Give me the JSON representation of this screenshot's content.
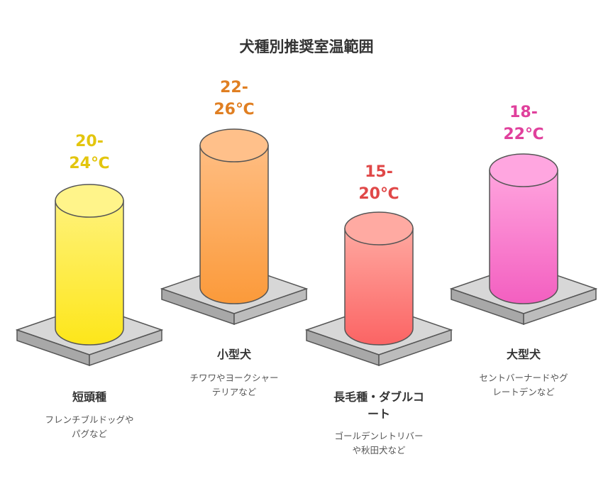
{
  "title": "犬種別推奨室温範囲",
  "breeds": [
    {
      "temp": [
        "20-",
        "24℃"
      ],
      "name": [
        "短頭種"
      ],
      "desc": [
        "フレンチブルドッグや",
        "パグなど"
      ],
      "color": "#e3c50e"
    },
    {
      "temp": [
        "22-",
        "26℃"
      ],
      "name": [
        "小型犬"
      ],
      "desc": [
        "チワワやヨークシャー",
        "テリアなど"
      ],
      "color": "#e07f22"
    },
    {
      "temp": [
        "15-",
        "20℃"
      ],
      "name": [
        "長毛種・ダブルコ",
        "ート"
      ],
      "desc": [
        "ゴールデンレトリバー",
        "や秋田犬など"
      ],
      "color": "#e04848"
    },
    {
      "temp": [
        "18-",
        "22℃"
      ],
      "name": [
        "大型犬"
      ],
      "desc": [
        "セントバーナードやグ",
        "レートデンなど"
      ],
      "color": "#e0409c"
    }
  ]
}
